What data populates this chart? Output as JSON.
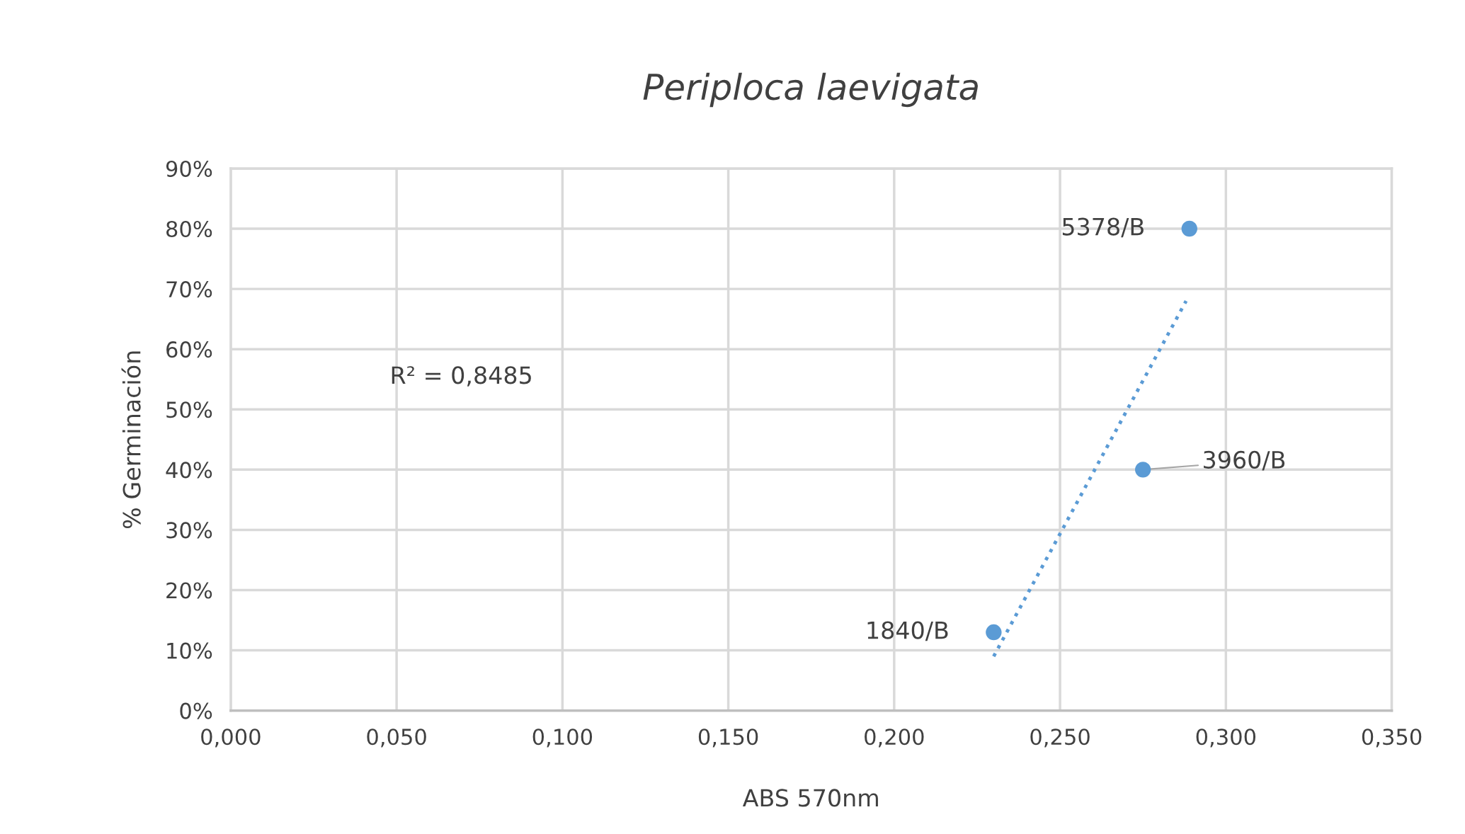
{
  "chart_data": {
    "type": "scatter",
    "title": "Periploca laevigata",
    "xlabel": "ABS 570nm",
    "ylabel": "% Germinación",
    "series": [
      {
        "color": "#5b9bd5",
        "x": [
          0.289,
          0.275,
          0.23
        ],
        "values": [
          80,
          40,
          13
        ],
        "marker": "circle"
      },
      {
        "type": "line",
        "color": "#5b9bd5",
        "x": [
          0.23,
          0.288
        ],
        "values": [
          9,
          68
        ],
        "line_style": "dotted",
        "marker": "none"
      }
    ],
    "annotations": [
      {
        "text": "5378/B",
        "x": 0.289,
        "y": 80
      },
      {
        "text": "3960/B",
        "x": 0.275,
        "y": 40
      },
      {
        "text": "1840/B",
        "x": 0.23,
        "y": 13
      },
      "R² = 0,8485"
    ],
    "xlim": [
      0,
      0.35
    ],
    "xticks": [
      {
        "value": 0,
        "label": "0,000"
      },
      {
        "value": 0.05,
        "label": "0,050"
      },
      {
        "value": 0.1,
        "label": "0,100"
      },
      {
        "value": 0.15,
        "label": "0,150"
      },
      {
        "value": 0.2,
        "label": "0,200"
      },
      {
        "value": 0.25,
        "label": "0,250"
      },
      {
        "value": 0.3,
        "label": "0,300"
      },
      {
        "value": 0.35,
        "label": "0,350"
      }
    ],
    "ylim": [
      0,
      90
    ],
    "yticks": [
      {
        "value": 0,
        "label": "0%"
      },
      {
        "value": 10,
        "label": "10%"
      },
      {
        "value": 20,
        "label": "20%"
      },
      {
        "value": 30,
        "label": "30%"
      },
      {
        "value": 40,
        "label": "40%"
      },
      {
        "value": 50,
        "label": "50%"
      },
      {
        "value": 60,
        "label": "60%"
      },
      {
        "value": 70,
        "label": "70%"
      },
      {
        "value": 80,
        "label": "80%"
      },
      {
        "value": 90,
        "label": "90%"
      }
    ],
    "grid": true
  }
}
